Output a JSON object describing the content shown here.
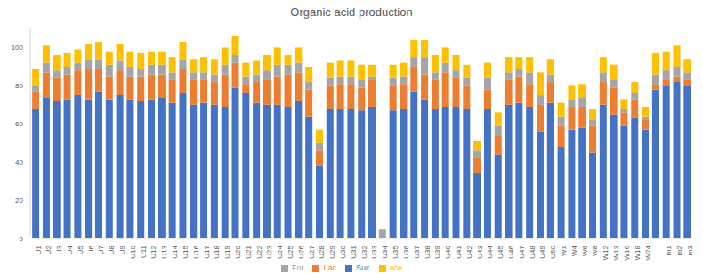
{
  "chart_data": {
    "type": "bar",
    "title": "Organic acid production",
    "stacked": true,
    "grid": false,
    "legend": "bottom",
    "categories": [
      "U1",
      "U2",
      "U3",
      "U4",
      "U5",
      "U6",
      "U7",
      "U8",
      "U9",
      "U10",
      "U11",
      "U12",
      "U13",
      "U14",
      "U15",
      "U16",
      "U17",
      "U18",
      "U19",
      "U20",
      "U21",
      "U22",
      "U23",
      "U24",
      "U25",
      "U26",
      "U27",
      "U28",
      "U29",
      "U30",
      "U31",
      "U32",
      "U33",
      "U34",
      "U35",
      "U36",
      "U37",
      "U38",
      "U39",
      "U40",
      "U41",
      "U42",
      "U43",
      "U44",
      "U45",
      "U46",
      "U47",
      "U48",
      "U49",
      "U50",
      "W1",
      "W4",
      "W6",
      "W8",
      "W12",
      "W13",
      "W16",
      "W18",
      "W24",
      null,
      "m1",
      "m2",
      "m3"
    ],
    "ylim": [
      0,
      110
    ],
    "yticks": [
      0,
      20,
      40,
      60,
      80,
      100
    ],
    "series": [
      {
        "name": "Suc",
        "color": "#4472c4",
        "values": [
          68,
          74,
          72,
          73,
          75,
          73,
          77,
          73,
          75,
          73,
          72,
          73,
          74,
          71,
          76,
          70,
          71,
          70,
          69,
          79,
          76,
          71,
          70,
          70,
          69,
          72,
          64,
          38,
          68,
          68,
          68,
          67,
          69,
          0,
          67,
          68,
          77,
          73,
          68,
          69,
          69,
          68,
          34,
          68,
          44,
          70,
          71,
          69,
          56,
          71,
          48,
          57,
          58,
          45,
          70,
          65,
          59,
          63,
          57,
          78,
          80,
          82,
          80
        ]
      },
      {
        "name": "Lac",
        "color": "#ed7d31",
        "values": [
          9,
          13,
          12,
          13,
          13,
          16,
          12,
          12,
          13,
          12,
          13,
          13,
          12,
          12,
          13,
          13,
          12,
          12,
          17,
          13,
          5,
          11,
          13,
          15,
          17,
          15,
          14,
          8,
          12,
          13,
          13,
          12,
          14,
          0,
          13,
          13,
          13,
          13,
          15,
          18,
          15,
          12,
          8,
          10,
          10,
          13,
          14,
          12,
          14,
          11,
          11,
          12,
          11,
          14,
          12,
          14,
          7,
          10,
          5,
          3,
          3,
          3,
          3
        ]
      },
      {
        "name": "For",
        "color": "#a5a5a5",
        "values": [
          3,
          5,
          4,
          4,
          4,
          5,
          5,
          6,
          5,
          5,
          4,
          5,
          5,
          4,
          5,
          4,
          4,
          4,
          5,
          4,
          4,
          4,
          5,
          6,
          5,
          5,
          4,
          4,
          4,
          4,
          4,
          4,
          2,
          5,
          4,
          4,
          5,
          9,
          4,
          5,
          4,
          4,
          4,
          6,
          5,
          4,
          4,
          6,
          5,
          4,
          5,
          4,
          5,
          3,
          5,
          4,
          2,
          3,
          2,
          5,
          5,
          5,
          4
        ]
      },
      {
        "name": "ace",
        "color": "#ffc000",
        "values": [
          9,
          9,
          8,
          7,
          7,
          8,
          9,
          7,
          9,
          8,
          8,
          7,
          7,
          8,
          9,
          7,
          8,
          8,
          9,
          10,
          7,
          7,
          8,
          9,
          5,
          8,
          8,
          7,
          8,
          8,
          8,
          8,
          6,
          0,
          7,
          7,
          9,
          9,
          9,
          8,
          8,
          7,
          5,
          8,
          7,
          8,
          6,
          8,
          12,
          8,
          7,
          7,
          7,
          6,
          8,
          8,
          5,
          6,
          5,
          11,
          10,
          11,
          7
        ]
      }
    ]
  }
}
